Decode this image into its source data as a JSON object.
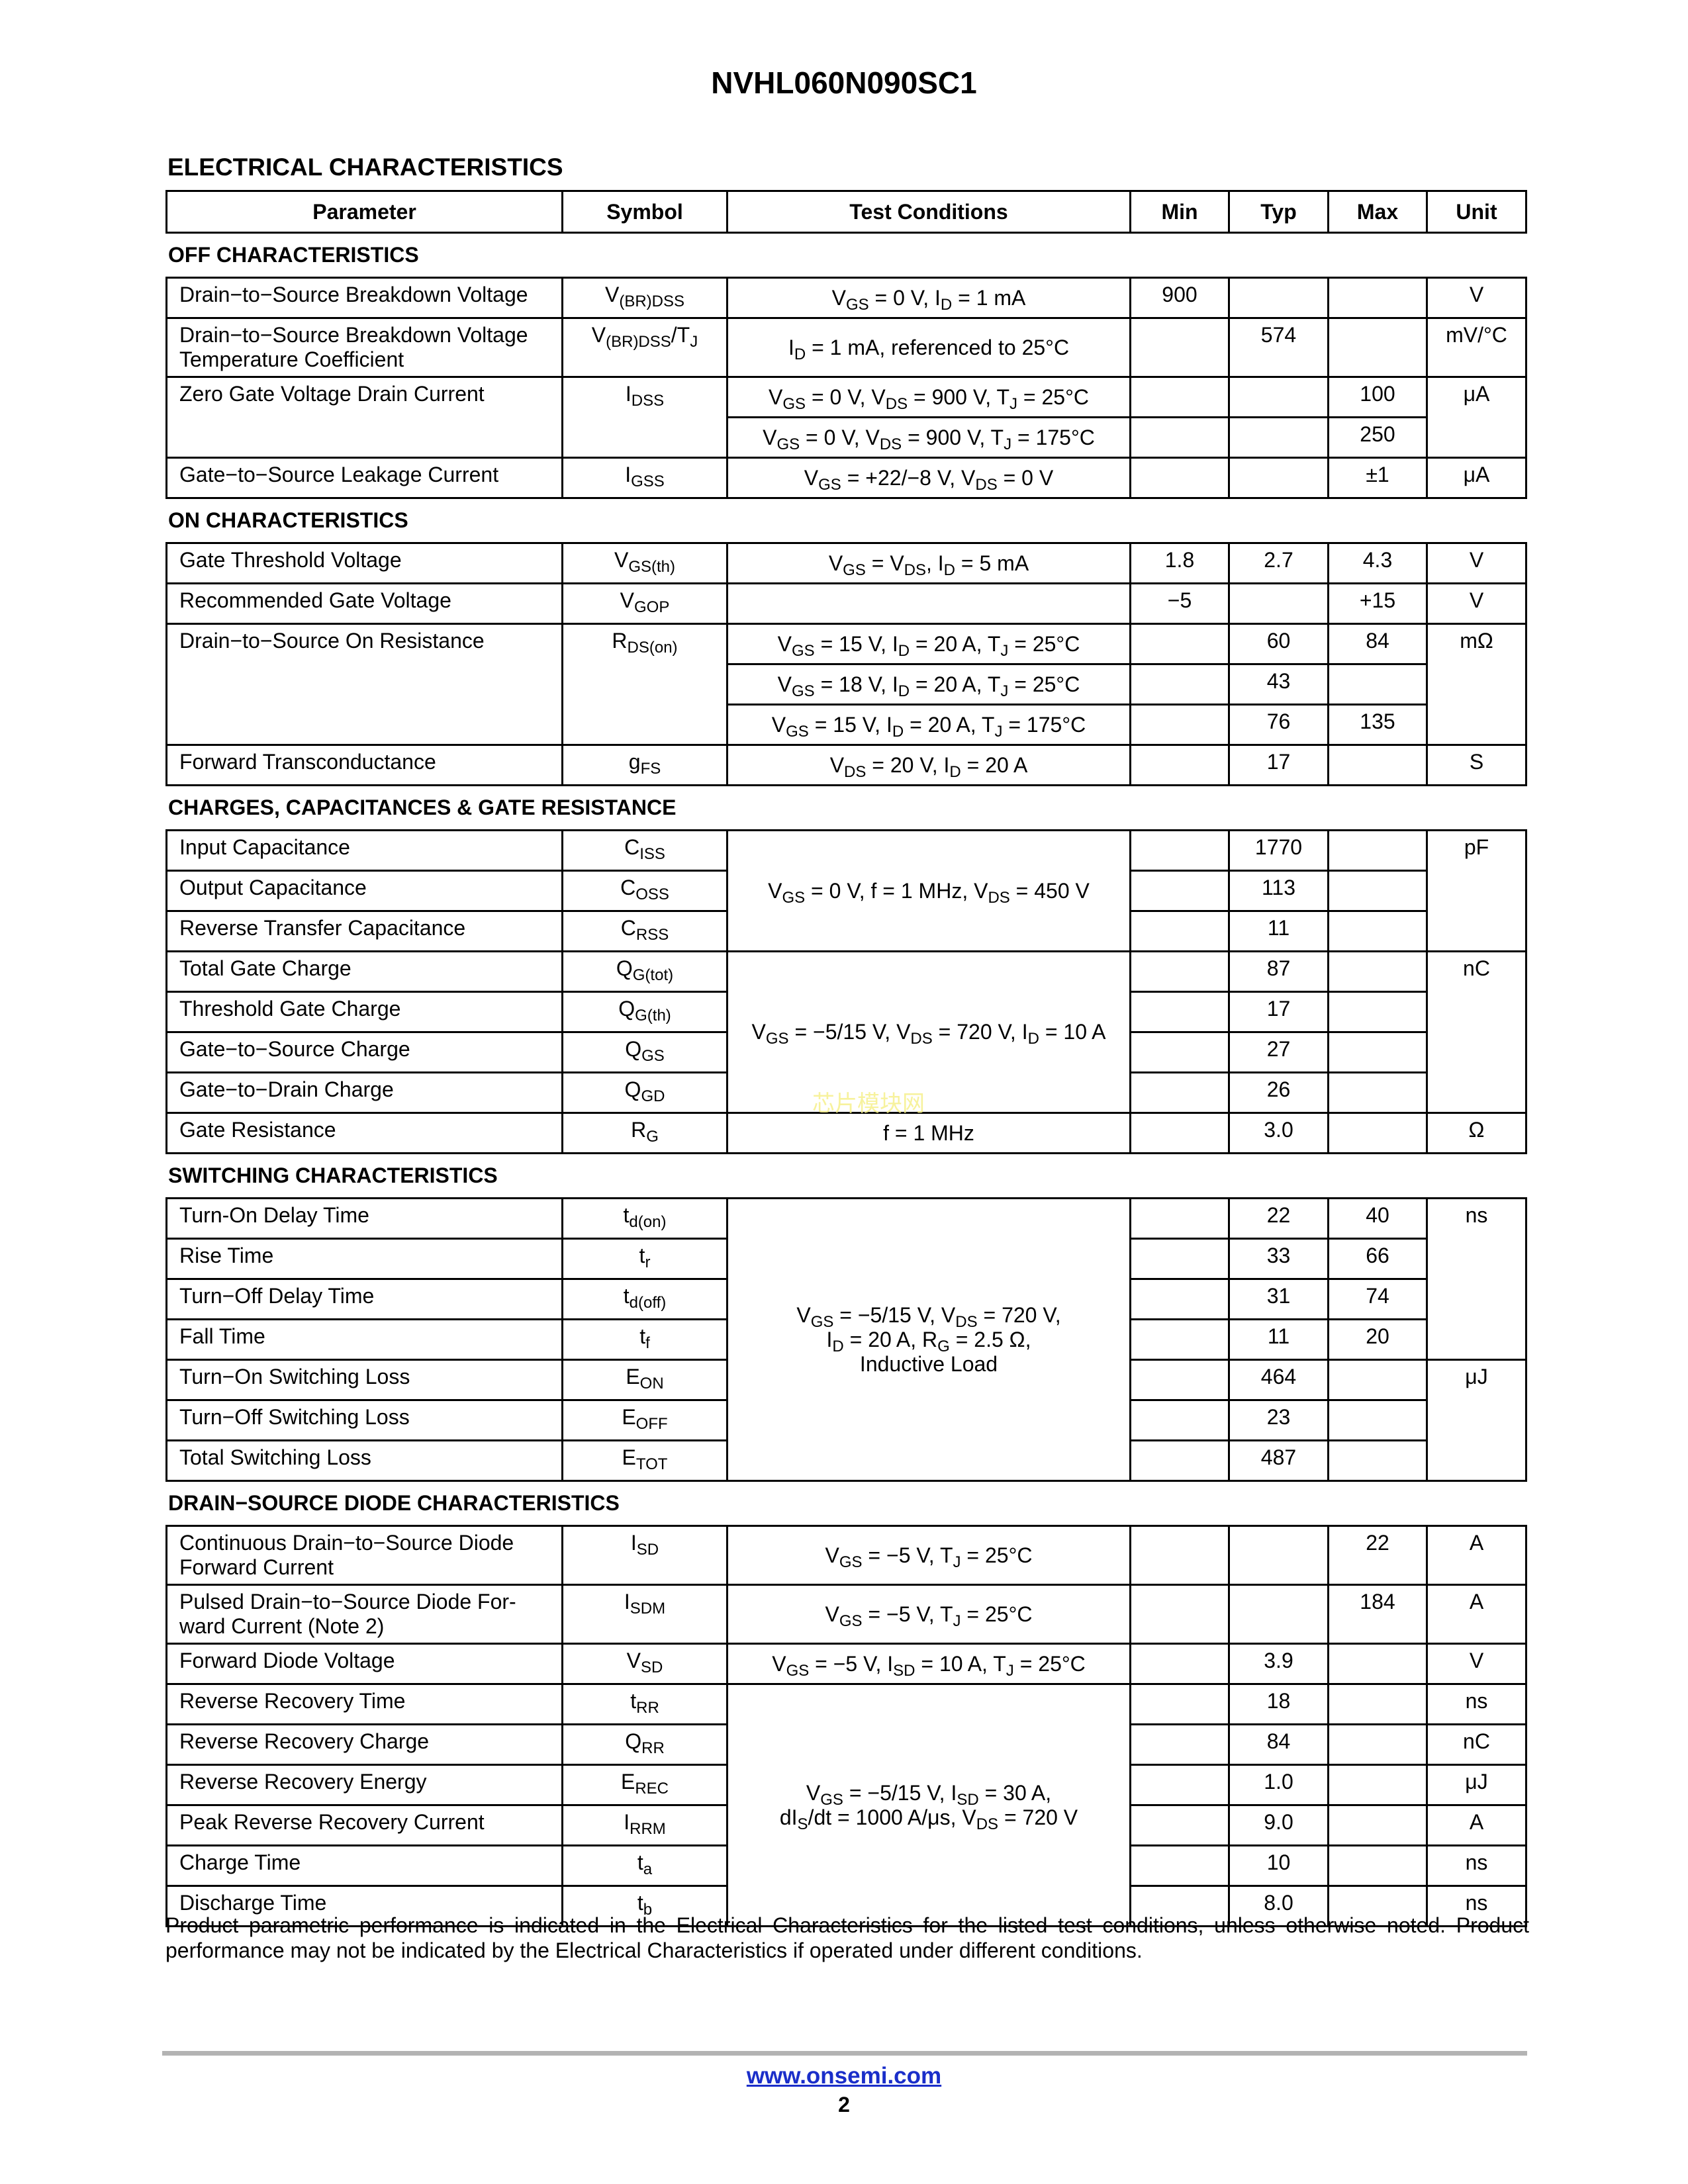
{
  "header": {
    "part_number": "NVHL060N090SC1"
  },
  "section_title": "ELECTRICAL CHARACTERISTICS",
  "columns": [
    "Parameter",
    "Symbol",
    "Test Conditions",
    "Min",
    "Typ",
    "Max",
    "Unit"
  ],
  "groups": [
    {
      "title": "OFF CHARACTERISTICS",
      "rows": [
        [
          "Drain−to−Source Breakdown Voltage",
          "V_{(BR)DSS}",
          "V_{GS} = 0 V, I_{D} = 1 mA",
          "900",
          "",
          "",
          "V"
        ],
        [
          "Drain−to−Source Breakdown Voltage\nTemperature Coefficient",
          "V_{(BR)DSS}/T_{J}",
          "I_{D} = 1 mA, referenced to 25°C",
          "",
          "574",
          "",
          "mV/°C"
        ],
        [
          {
            "t": "Zero Gate Voltage Drain Current",
            "rs": 2
          },
          {
            "t": "I_{DSS}",
            "rs": 2
          },
          "V_{GS} = 0 V, V_{DS} = 900 V, T_{J} = 25°C",
          "",
          "",
          "100",
          {
            "t": "μA",
            "rs": 2
          }
        ],
        [
          null,
          null,
          "V_{GS} = 0 V, V_{DS} = 900 V, T_{J} = 175°C",
          "",
          "",
          "250",
          null
        ],
        [
          "Gate−to−Source Leakage Current",
          "I_{GSS}",
          "V_{GS} = +22/−8 V, V_{DS} = 0 V",
          "",
          "",
          "±1",
          "μA"
        ]
      ]
    },
    {
      "title": "ON CHARACTERISTICS",
      "rows": [
        [
          "Gate Threshold Voltage",
          "V_{GS(th)}",
          "V_{GS} = V_{DS}, I_{D} = 5 mA",
          "1.8",
          "2.7",
          "4.3",
          "V"
        ],
        [
          "Recommended Gate Voltage",
          "V_{GOP}",
          "",
          "−5",
          "",
          "+15",
          "V"
        ],
        [
          {
            "t": "Drain−to−Source On Resistance",
            "rs": 3
          },
          {
            "t": "R_{DS(on)}",
            "rs": 3
          },
          "V_{GS} = 15 V, I_{D} = 20 A, T_{J} = 25°C",
          "",
          "60",
          "84",
          {
            "t": "mΩ",
            "rs": 3
          }
        ],
        [
          null,
          null,
          "V_{GS} = 18 V, I_{D} = 20 A, T_{J} = 25°C",
          "",
          "43",
          "",
          null
        ],
        [
          null,
          null,
          "V_{GS} = 15 V, I_{D} = 20 A, T_{J} = 175°C",
          "",
          "76",
          "135",
          null
        ],
        [
          "Forward Transconductance",
          "g_{FS}",
          "V_{DS} = 20 V, I_{D} = 20 A",
          "",
          "17",
          "",
          "S"
        ]
      ]
    },
    {
      "title": "CHARGES, CAPACITANCES & GATE RESISTANCE",
      "rows": [
        [
          "Input Capacitance",
          "C_{ISS}",
          {
            "t": "V_{GS} = 0 V, f = 1 MHz, V_{DS} = 450 V",
            "rs": 3
          },
          "",
          "1770",
          "",
          {
            "t": "pF",
            "rs": 3
          }
        ],
        [
          "Output Capacitance",
          "C_{OSS}",
          null,
          "",
          "113",
          "",
          null
        ],
        [
          "Reverse Transfer Capacitance",
          "C_{RSS}",
          null,
          "",
          "11",
          "",
          null
        ],
        [
          "Total Gate Charge",
          "Q_{G(tot)}",
          {
            "t": "V_{GS} = −5/15 V, V_{DS} = 720 V, I_{D} = 10 A",
            "rs": 4
          },
          "",
          "87",
          "",
          {
            "t": "nC",
            "rs": 4
          }
        ],
        [
          "Threshold Gate Charge",
          "Q_{G(th)}",
          null,
          "",
          "17",
          "",
          null
        ],
        [
          "Gate−to−Source Charge",
          "Q_{GS}",
          null,
          "",
          "27",
          "",
          null
        ],
        [
          "Gate−to−Drain Charge",
          "Q_{GD}",
          null,
          "",
          "26",
          "",
          null
        ],
        [
          "Gate Resistance",
          "R_{G}",
          "f = 1 MHz",
          "",
          "3.0",
          "",
          "Ω"
        ]
      ]
    },
    {
      "title": "SWITCHING CHARACTERISTICS",
      "rows": [
        [
          "Turn-On Delay Time",
          "t_{d(on)}",
          {
            "t": "V_{GS} = −5/15 V, V_{DS} = 720 V,\nI_{D} = 20 A, R_{G} = 2.5 Ω,\nInductive Load",
            "rs": 7
          },
          "",
          "22",
          "40",
          {
            "t": "ns",
            "rs": 4
          }
        ],
        [
          "Rise Time",
          "t_{r}",
          null,
          "",
          "33",
          "66",
          null
        ],
        [
          "Turn−Off Delay Time",
          "t_{d(off)}",
          null,
          "",
          "31",
          "74",
          null
        ],
        [
          "Fall Time",
          "t_{f}",
          null,
          "",
          "11",
          "20",
          null
        ],
        [
          "Turn−On Switching Loss",
          "E_{ON}",
          null,
          "",
          "464",
          "",
          {
            "t": "μJ",
            "rs": 3
          }
        ],
        [
          "Turn−Off Switching Loss",
          "E_{OFF}",
          null,
          "",
          "23",
          "",
          null
        ],
        [
          "Total Switching Loss",
          "E_{TOT}",
          null,
          "",
          "487",
          "",
          null
        ]
      ]
    },
    {
      "title": "DRAIN−SOURCE DIODE CHARACTERISTICS",
      "rows": [
        [
          "Continuous Drain−to−Source Diode\nForward Current",
          "I_{SD}",
          "V_{GS} = −5 V, T_{J} = 25°C",
          "",
          "",
          "22",
          "A"
        ],
        [
          "Pulsed Drain−to−Source Diode For-\nward Current (Note 2)",
          "I_{SDM}",
          "V_{GS} = −5 V, T_{J} = 25°C",
          "",
          "",
          "184",
          "A"
        ],
        [
          "Forward Diode Voltage",
          "V_{SD}",
          "V_{GS} = −5 V, I_{SD} = 10 A, T_{J} = 25°C",
          "",
          "3.9",
          "",
          "V"
        ],
        [
          "Reverse Recovery Time",
          "t_{RR}",
          {
            "t": "V_{GS} = −5/15 V, I_{SD} = 30 A,\ndI_{S}/dt = 1000 A/μs, V_{DS} = 720 V",
            "rs": 6
          },
          "",
          "18",
          "",
          "ns"
        ],
        [
          "Reverse Recovery Charge",
          "Q_{RR}",
          null,
          "",
          "84",
          "",
          "nC"
        ],
        [
          "Reverse Recovery Energy",
          "E_{REC}",
          null,
          "",
          "1.0",
          "",
          "μJ"
        ],
        [
          "Peak Reverse Recovery Current",
          "I_{RRM}",
          null,
          "",
          "9.0",
          "",
          "A"
        ],
        [
          "Charge Time",
          "t_{a}",
          null,
          "",
          "10",
          "",
          "ns"
        ],
        [
          "Discharge Time",
          "t_{b}",
          null,
          "",
          "8.0",
          "",
          "ns"
        ]
      ]
    }
  ],
  "note": "Product parametric performance is indicated in the Electrical Characteristics for the listed test conditions, unless otherwise noted. Product performance may not be indicated by the Electrical Characteristics if operated under different conditions.",
  "footer": {
    "website": "www.onsemi.com",
    "page_number": "2"
  },
  "watermark": "芯片模块网",
  "colors": {
    "link": "#1a2ec9",
    "rule": "#b3b3b3",
    "watermark": "#f6f08c"
  }
}
